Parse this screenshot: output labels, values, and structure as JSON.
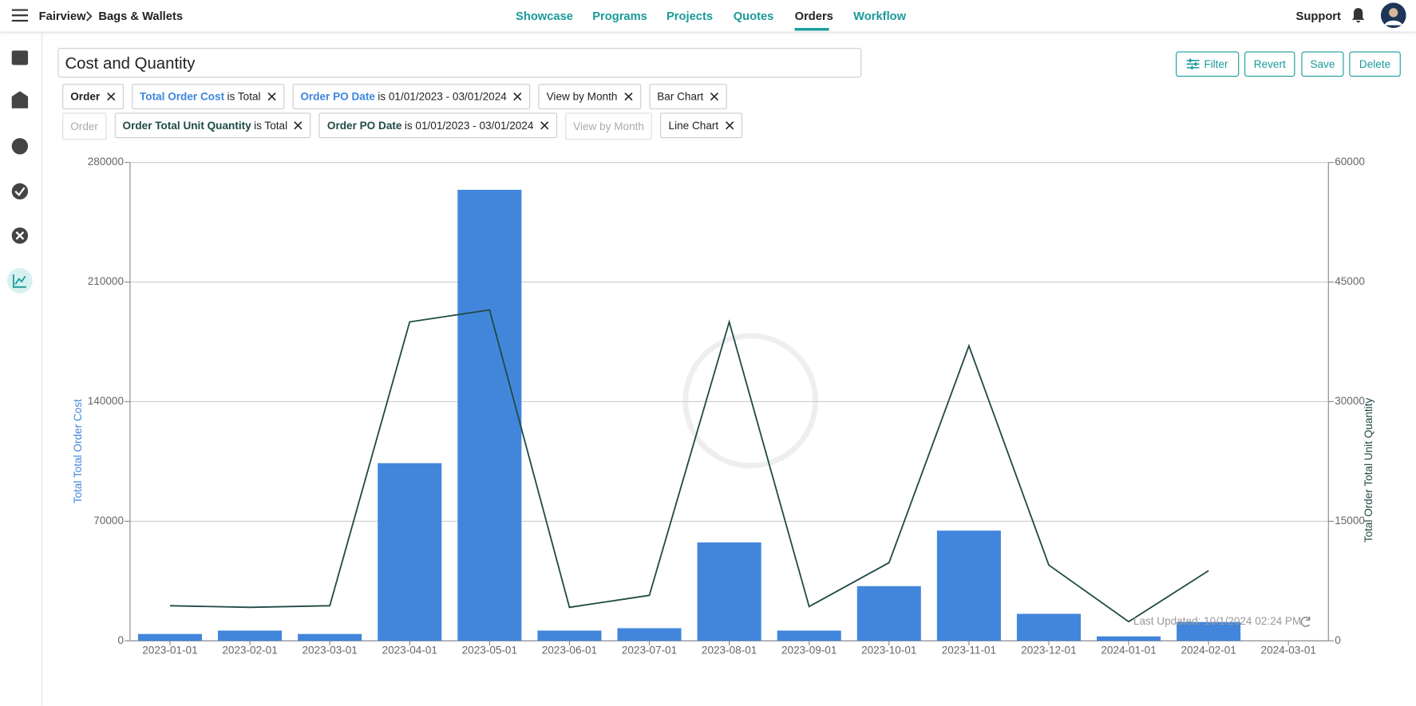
{
  "header": {
    "breadcrumb": [
      "Fairview",
      "Bags & Wallets"
    ],
    "nav": [
      "Showcase",
      "Programs",
      "Projects",
      "Quotes",
      "Orders",
      "Workflow"
    ],
    "active_nav": 4,
    "support": "Support"
  },
  "report": {
    "title": "Cost and Quantity",
    "buttons": [
      "Filter",
      "Revert",
      "Save",
      "Delete"
    ]
  },
  "filters": {
    "rows": [
      {
        "chips": [
          {
            "field": "Order"
          },
          {
            "field": "Total Order Cost",
            "text": "is Total"
          },
          {
            "field": "Order PO Date",
            "text": "is 01/01/2023 - 03/01/2024"
          },
          {
            "text": "View by Month"
          },
          {
            "text": "Bar Chart"
          }
        ],
        "field_color": "#3d85de"
      },
      {
        "chips": [
          {
            "text": "Order",
            "disabled": true
          },
          {
            "field": "Order Total Unit Quantity",
            "text": "is Total"
          },
          {
            "field": "Order PO Date",
            "text": "is 01/01/2023 - 03/01/2024"
          },
          {
            "text": "View by Month",
            "disabled": true
          },
          {
            "text": "Line Chart"
          }
        ],
        "field_color": "#1f4a45"
      }
    ]
  },
  "chart_data": {
    "type": "combo",
    "categories": [
      "2023-01-01",
      "2023-02-01",
      "2023-03-01",
      "2023-04-01",
      "2023-05-01",
      "2023-06-01",
      "2023-07-01",
      "2023-08-01",
      "2023-09-01",
      "2023-10-01",
      "2023-11-01",
      "2023-12-01",
      "2024-01-01",
      "2024-02-01",
      "2024-03-01"
    ],
    "series": [
      {
        "name": "Total Total Order Cost",
        "type": "bar",
        "color": "#4286dc",
        "values": [
          4000,
          6000,
          4000,
          104000,
          264000,
          6000,
          7400,
          57600,
          6000,
          32000,
          64500,
          15800,
          2600,
          11000,
          0
        ]
      },
      {
        "name": "Total Order Total Unit Quantity",
        "type": "line",
        "axis": "y2",
        "color": "#1f4a45",
        "values": [
          4400,
          4200,
          4400,
          40000,
          41500,
          4200,
          5700,
          40000,
          4300,
          9800,
          37000,
          9500,
          2400,
          8800,
          null
        ]
      }
    ],
    "ylabel": "Total Total Order Cost",
    "y2label": "Total Order Total Unit Quantity",
    "ylim": [
      0,
      280000
    ],
    "yticks": [
      0,
      70000,
      140000,
      210000,
      280000
    ],
    "y2lim": [
      0,
      60000
    ],
    "y2ticks": [
      0,
      15000,
      30000,
      45000,
      60000
    ],
    "grid": true,
    "footnote": "Last Updated: 10/1/2024 02:24 PM"
  }
}
